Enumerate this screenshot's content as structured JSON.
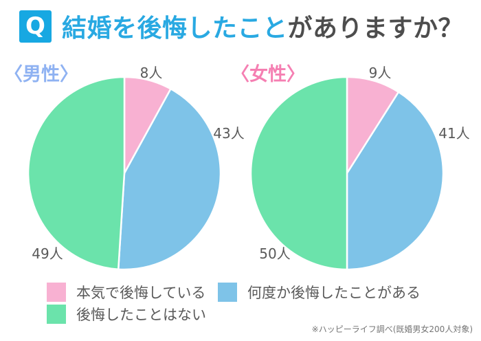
{
  "header": {
    "q_badge": "Q",
    "title_highlight": "結婚を後悔したこと",
    "title_rest": "がありますか？",
    "accent_color": "#17A8E2",
    "title_highlight_color": "#29A9E2",
    "title_rest_color": "#4D4D4D"
  },
  "charts": [
    {
      "group_label": "〈男性〉",
      "group_label_color": "#8FB2F2"
    },
    {
      "group_label": "〈女性〉",
      "group_label_color": "#F57FB2"
    }
  ],
  "chart_data": [
    {
      "type": "pie",
      "title": "男性",
      "categories": [
        "本気で後悔している",
        "何度か後悔したことがある",
        "後悔したことはない"
      ],
      "values": [
        8,
        43,
        49
      ],
      "unit": "人",
      "point_labels": [
        "8人",
        "43人",
        "49人"
      ],
      "colors": [
        "#F8B1D2",
        "#7EC3E8",
        "#6BE3AB"
      ],
      "start_angle_deg": 0,
      "direction": "clockwise",
      "legend_position": "bottom"
    },
    {
      "type": "pie",
      "title": "女性",
      "categories": [
        "本気で後悔している",
        "何度か後悔したことがある",
        "後悔したことはない"
      ],
      "values": [
        9,
        41,
        50
      ],
      "unit": "人",
      "point_labels": [
        "9人",
        "41人",
        "50人"
      ],
      "colors": [
        "#F8B1D2",
        "#7EC3E8",
        "#6BE3AB"
      ],
      "start_angle_deg": 0,
      "direction": "clockwise",
      "legend_position": "bottom"
    }
  ],
  "legend": {
    "items": [
      {
        "label": "本気で後悔している",
        "color": "#F8B1D2"
      },
      {
        "label": "何度か後悔したことがある",
        "color": "#7EC3E8"
      },
      {
        "label": "後悔したことはない",
        "color": "#6BE3AB"
      }
    ]
  },
  "footer": {
    "note": "※ハッピーライフ調べ(既婚男女200人対象)"
  }
}
